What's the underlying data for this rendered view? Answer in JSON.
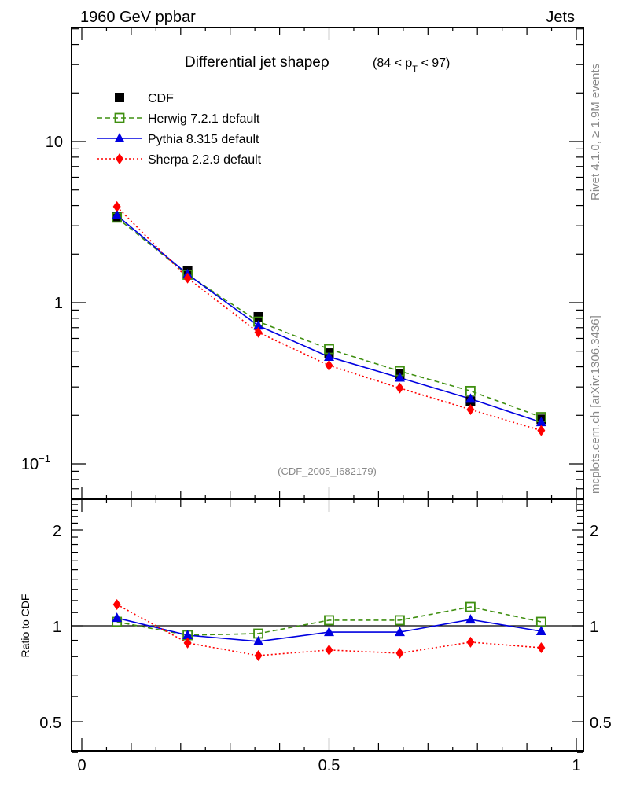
{
  "header": {
    "left": "1960 GeV ppbar",
    "right": "Jets"
  },
  "side_labels": {
    "top": "Rivet 4.1.0, ≥ 1.9M events",
    "bottom": "mcplots.cern.ch [arXiv:1306.3436]"
  },
  "chart_data": [
    {
      "type": "line",
      "panel": "main",
      "title": "Differential jet shapeρ",
      "title_range": "(84 < p_T < 97)",
      "annotation": "(CDF_2005_I682179)",
      "xlabel": "",
      "ylabel": "",
      "yscale": "log",
      "xlim": [
        -0.02,
        1.015
      ],
      "ylim": [
        0.06,
        51
      ],
      "ytick_labels": [
        "10",
        "1",
        "10⁻¹"
      ],
      "ytick_values": [
        10,
        1,
        0.1
      ],
      "legend_placement": "top-left",
      "x": [
        0.071,
        0.214,
        0.357,
        0.5,
        0.643,
        0.786,
        0.929
      ],
      "series": [
        {
          "name": "CDF",
          "style": "marker-only",
          "marker": "square-filled",
          "color": "#000000",
          "values": [
            3.4,
            1.58,
            0.817,
            0.487,
            0.36,
            0.245,
            0.189
          ]
        },
        {
          "name": "Herwig 7.2.1 default",
          "style": "dashed",
          "marker": "square-open",
          "color": "#3f8f10",
          "values": [
            3.37,
            1.49,
            0.763,
            0.515,
            0.376,
            0.283,
            0.195
          ]
        },
        {
          "name": "Pythia 8.315 default",
          "style": "solid",
          "marker": "triangle",
          "color": "#0000e0",
          "values": [
            3.48,
            1.5,
            0.72,
            0.461,
            0.342,
            0.253,
            0.181
          ]
        },
        {
          "name": "Sherpa 2.2.9 default",
          "style": "dotted",
          "marker": "diamond",
          "color": "#ff0000",
          "values": [
            3.94,
            1.42,
            0.654,
            0.408,
            0.295,
            0.217,
            0.161
          ]
        }
      ]
    },
    {
      "type": "line",
      "panel": "ratio",
      "ylabel": "Ratio to CDF",
      "yscale": "log",
      "xlim": [
        -0.02,
        1.015
      ],
      "ylim": [
        0.4,
        2.5
      ],
      "ytick_labels": [
        "2",
        "1",
        "0.5"
      ],
      "ytick_values": [
        2,
        1,
        0.5
      ],
      "xtick_labels": [
        "0",
        "0.5",
        "1"
      ],
      "xtick_values": [
        0,
        0.5,
        1
      ],
      "x": [
        0.071,
        0.214,
        0.357,
        0.5,
        0.643,
        0.786,
        0.929
      ],
      "series": [
        {
          "name": "Herwig 7.2.1 default",
          "style": "dashed",
          "marker": "square-open",
          "color": "#3f8f10",
          "values": [
            1.029,
            0.934,
            0.945,
            1.041,
            1.041,
            1.146,
            1.029
          ]
        },
        {
          "name": "Pythia 8.315 default",
          "style": "solid",
          "marker": "triangle",
          "color": "#0000e0",
          "values": [
            1.058,
            0.934,
            0.893,
            0.955,
            0.955,
            1.046,
            0.961
          ]
        },
        {
          "name": "Sherpa 2.2.9 default",
          "style": "dotted",
          "marker": "diamond",
          "color": "#ff0000",
          "values": [
            1.166,
            0.883,
            0.806,
            0.839,
            0.82,
            0.888,
            0.853
          ]
        }
      ]
    }
  ]
}
